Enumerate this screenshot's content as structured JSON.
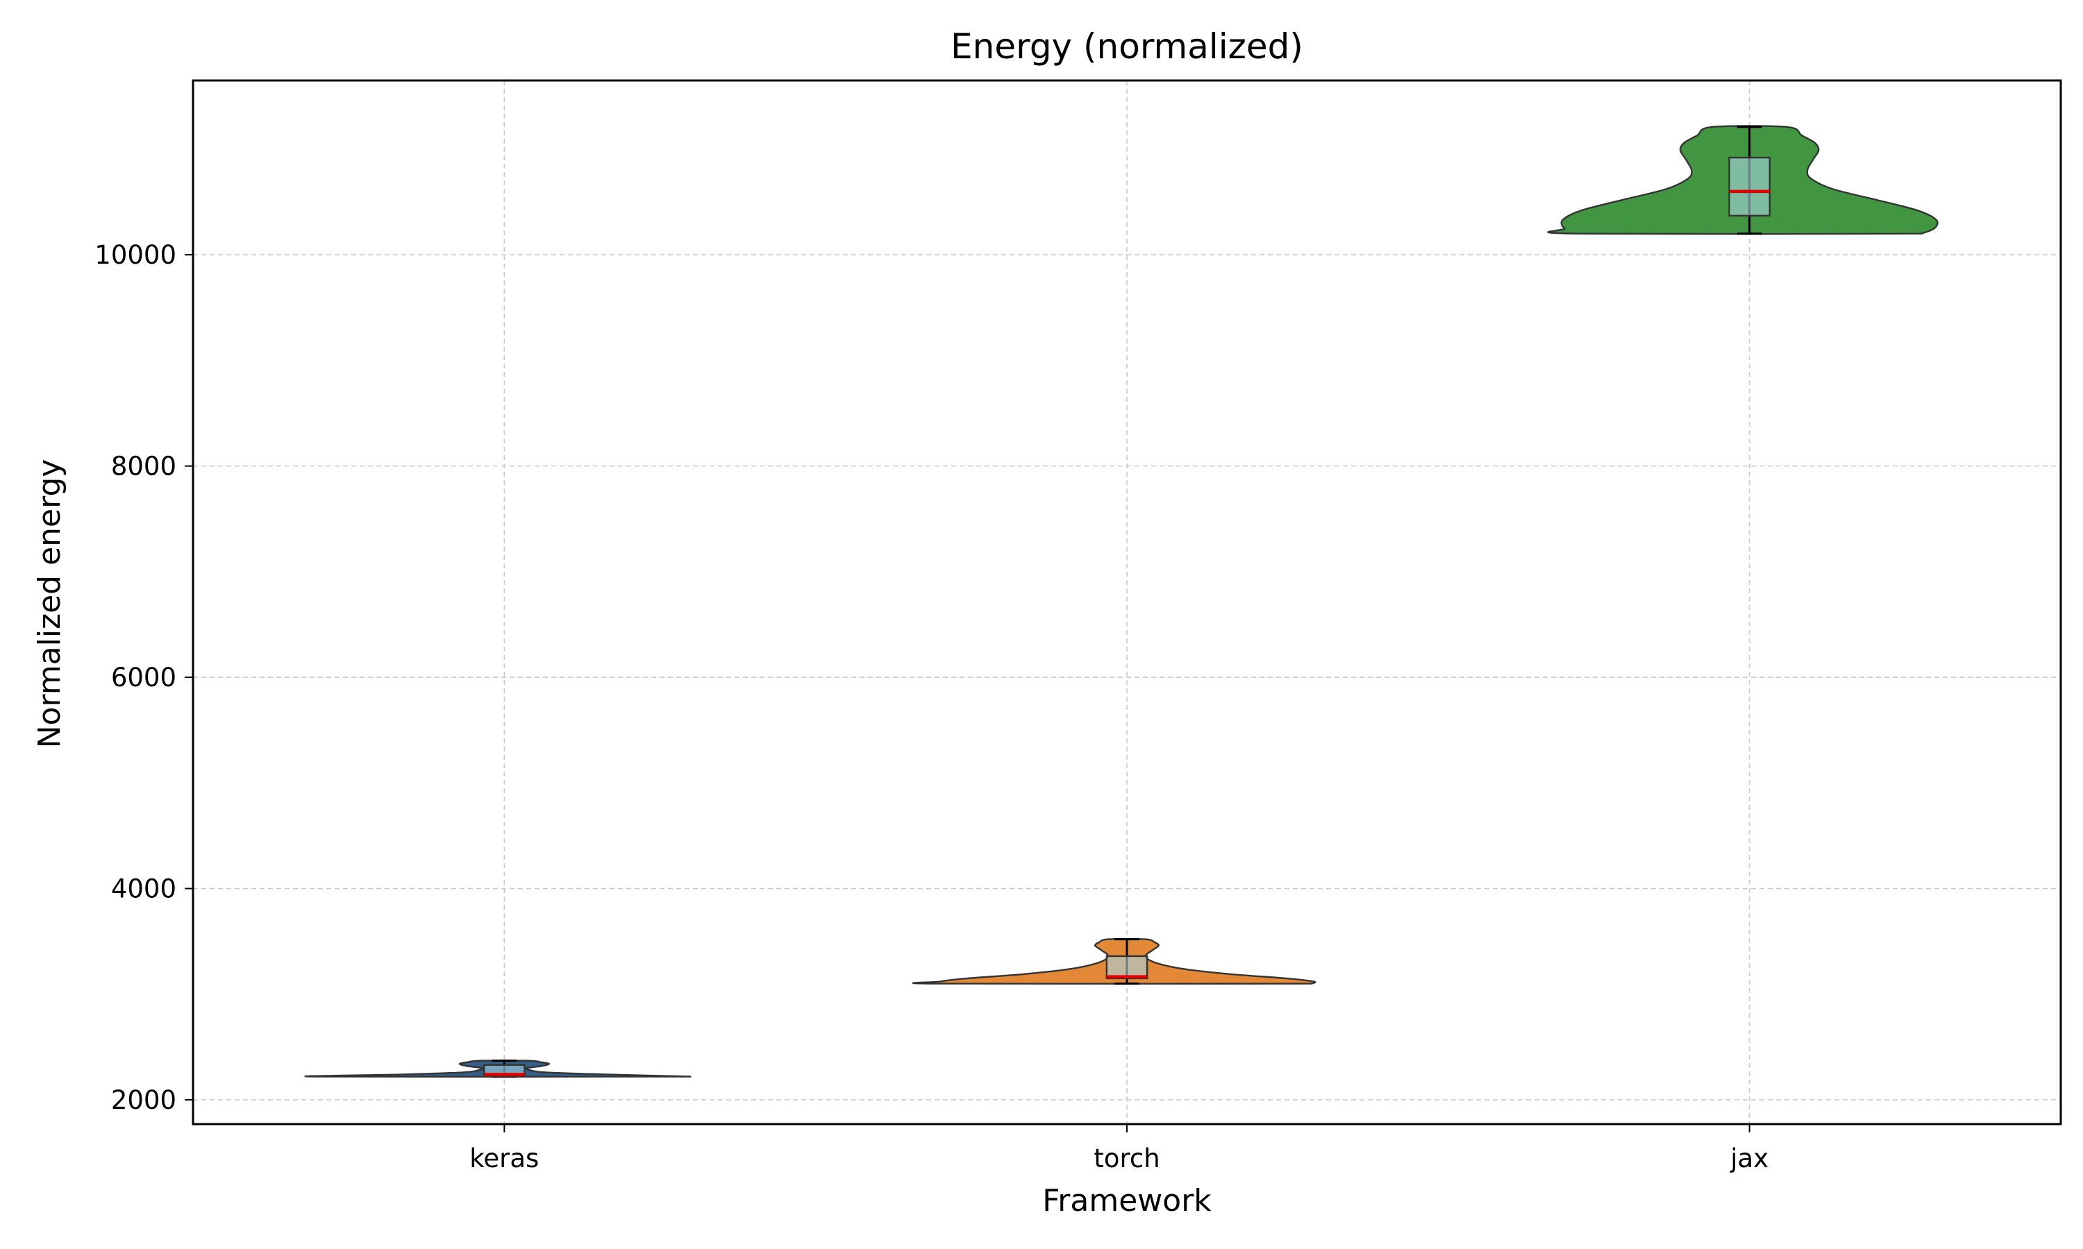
{
  "chart_data": {
    "type": "violin",
    "title": "Energy (normalized)",
    "xlabel": "Framework",
    "ylabel": "Normalized energy",
    "categories": [
      "keras",
      "torch",
      "jax"
    ],
    "ylim": [
      1770,
      11650
    ],
    "yticks": [
      2000,
      4000,
      6000,
      8000,
      10000
    ],
    "grid": true,
    "series": [
      {
        "category": "keras",
        "color": "#1f4e79",
        "min": 2220,
        "q1": 2225,
        "median": 2240,
        "q3": 2330,
        "max": 2370,
        "profile": [
          [
            2220,
            1.0
          ],
          [
            2240,
            0.55
          ],
          [
            2260,
            0.22
          ],
          [
            2280,
            0.14
          ],
          [
            2300,
            0.12
          ],
          [
            2320,
            0.2
          ],
          [
            2340,
            0.24
          ],
          [
            2355,
            0.2
          ],
          [
            2370,
            0.13
          ]
        ]
      },
      {
        "category": "torch",
        "color": "#e07b20",
        "min": 3100,
        "q1": 3150,
        "median": 3165,
        "q3": 3360,
        "max": 3520,
        "profile": [
          [
            3100,
            0.99
          ],
          [
            3120,
            1.0
          ],
          [
            3150,
            0.85
          ],
          [
            3190,
            0.55
          ],
          [
            3240,
            0.3
          ],
          [
            3300,
            0.15
          ],
          [
            3360,
            0.1
          ],
          [
            3420,
            0.14
          ],
          [
            3460,
            0.17
          ],
          [
            3490,
            0.15
          ],
          [
            3520,
            0.1
          ]
        ]
      },
      {
        "category": "jax",
        "color": "#2e8b2e",
        "min": 10200,
        "q1": 10370,
        "median": 10600,
        "q3": 10920,
        "max": 11210,
        "profile": [
          [
            10200,
            0.92
          ],
          [
            10250,
            0.99
          ],
          [
            10330,
            1.0
          ],
          [
            10420,
            0.9
          ],
          [
            10520,
            0.68
          ],
          [
            10620,
            0.45
          ],
          [
            10720,
            0.33
          ],
          [
            10800,
            0.31
          ],
          [
            10900,
            0.34
          ],
          [
            10990,
            0.37
          ],
          [
            11060,
            0.35
          ],
          [
            11130,
            0.28
          ],
          [
            11210,
            0.2
          ]
        ]
      }
    ]
  }
}
